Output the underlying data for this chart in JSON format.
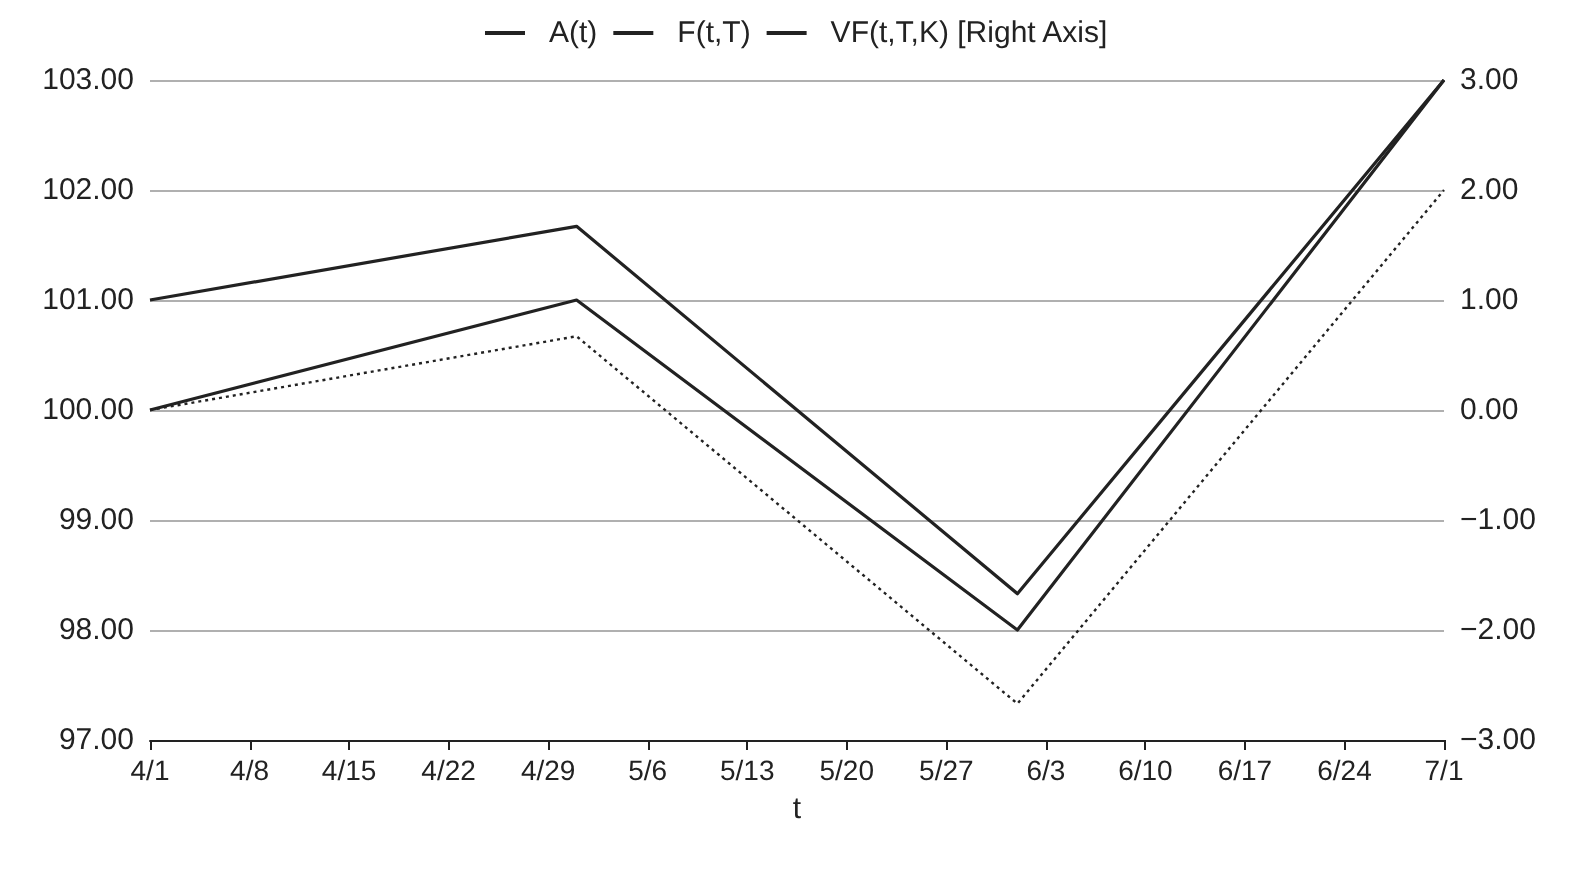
{
  "chart_data": {
    "type": "line",
    "xlabel": "t",
    "x": [
      "--04-01",
      "--05-01",
      "--06-01",
      "--07-01"
    ],
    "series": [
      {
        "name": "A(t)",
        "color": "#222222",
        "line_style": "solid",
        "values": [
          101,
          101.67,
          98.33,
          103
        ]
      },
      {
        "name": "F(t,T)",
        "color": "#222222",
        "line_style": "solid",
        "values": [
          100,
          101,
          98,
          103
        ]
      },
      {
        "name": "VF(t,T,K) [Right Axis]",
        "color": "#222222",
        "line_style": "dotted",
        "axis": "y2",
        "values": [
          0,
          0.67,
          -2.67,
          2
        ]
      }
    ],
    "xlim": [
      "--04-01",
      "--07-01"
    ],
    "xticks": [
      {
        "value": "--04-01",
        "label": "4/1"
      },
      {
        "value": "--04-08",
        "label": "4/8"
      },
      {
        "value": "--04-15",
        "label": "4/15"
      },
      {
        "value": "--04-22",
        "label": "4/22"
      },
      {
        "value": "--04-29",
        "label": "4/29"
      },
      {
        "value": "--05-06",
        "label": "5/6"
      },
      {
        "value": "--05-13",
        "label": "5/13"
      },
      {
        "value": "--05-20",
        "label": "5/20"
      },
      {
        "value": "--05-27",
        "label": "5/27"
      },
      {
        "value": "--06-03",
        "label": "6/3"
      },
      {
        "value": "--06-10",
        "label": "6/10"
      },
      {
        "value": "--06-17",
        "label": "6/17"
      },
      {
        "value": "--06-24",
        "label": "6/24"
      },
      {
        "value": "--07-01",
        "label": "7/1"
      }
    ],
    "ylim": [
      97,
      103
    ],
    "yticks": [
      {
        "value": 97,
        "label": "97.00"
      },
      {
        "value": 98,
        "label": "98.00"
      },
      {
        "value": 99,
        "label": "99.00"
      },
      {
        "value": 100,
        "label": "100.00"
      },
      {
        "value": 101,
        "label": "101.00"
      },
      {
        "value": 102,
        "label": "102.00"
      },
      {
        "value": 103,
        "label": "103.00"
      }
    ],
    "y2lim": [
      -3,
      3
    ],
    "y2ticks": [
      {
        "value": -3,
        "label": "−3.00"
      },
      {
        "value": -2,
        "label": "−2.00"
      },
      {
        "value": -1,
        "label": "−1.00"
      },
      {
        "value": 0,
        "label": "0.00"
      },
      {
        "value": 1,
        "label": "1.00"
      },
      {
        "value": 2,
        "label": "2.00"
      },
      {
        "value": 3,
        "label": "3.00"
      }
    ],
    "grid": "y",
    "legend": "top",
    "marker": "none"
  }
}
